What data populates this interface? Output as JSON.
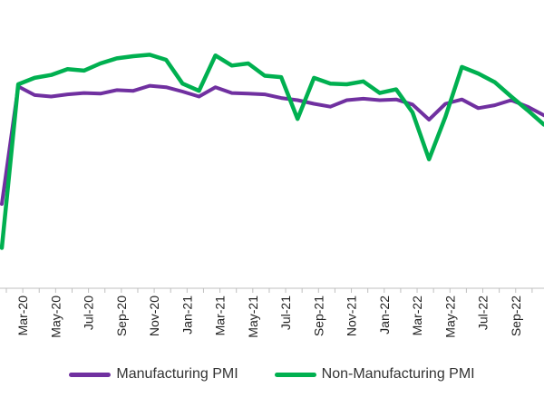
{
  "chart_data": {
    "type": "line",
    "x": [
      "Feb-20",
      "Mar-20",
      "Apr-20",
      "May-20",
      "Jun-20",
      "Jul-20",
      "Aug-20",
      "Sep-20",
      "Oct-20",
      "Nov-20",
      "Dec-20",
      "Jan-21",
      "Feb-21",
      "Mar-21",
      "Apr-21",
      "May-21",
      "Jun-21",
      "Jul-21",
      "Aug-21",
      "Sep-21",
      "Oct-21",
      "Nov-21",
      "Dec-21",
      "Jan-22",
      "Feb-22",
      "Mar-22",
      "Apr-22",
      "May-22",
      "Jun-22",
      "Jul-22",
      "Aug-22",
      "Sep-22",
      "Oct-22",
      "Nov-22"
    ],
    "tick_labels": [
      "Mar-20",
      "May-20",
      "Jul-20",
      "Sep-20",
      "Nov-20",
      "Jan-21",
      "Mar-21",
      "May-21",
      "Jul-21",
      "Sep-21",
      "Nov-21",
      "Jan-22",
      "Mar-22",
      "May-22",
      "Jul-22",
      "Sep-22"
    ],
    "series": [
      {
        "name": "Manufacturing PMI",
        "color": "#7030a0",
        "values": [
          35.7,
          52.0,
          50.8,
          50.6,
          50.9,
          51.1,
          51.0,
          51.5,
          51.4,
          52.1,
          51.9,
          51.3,
          50.6,
          51.9,
          51.1,
          51.0,
          50.9,
          50.4,
          50.1,
          49.6,
          49.2,
          50.1,
          50.3,
          50.1,
          50.2,
          49.5,
          47.4,
          49.6,
          50.2,
          49.0,
          49.4,
          50.1,
          49.2,
          48.0
        ]
      },
      {
        "name": "Non-Manufacturing PMI",
        "color": "#00b050",
        "values": [
          29.6,
          52.3,
          53.2,
          53.6,
          54.4,
          54.2,
          55.2,
          55.9,
          56.2,
          56.4,
          55.7,
          52.4,
          51.4,
          56.3,
          54.9,
          55.2,
          53.5,
          53.3,
          47.5,
          53.2,
          52.4,
          52.3,
          52.7,
          51.1,
          51.6,
          48.4,
          41.9,
          47.8,
          54.7,
          53.8,
          52.6,
          50.6,
          48.7,
          46.7
        ]
      }
    ],
    "ylim": [
      24,
      64
    ],
    "grid": false,
    "legend": "bottom"
  }
}
